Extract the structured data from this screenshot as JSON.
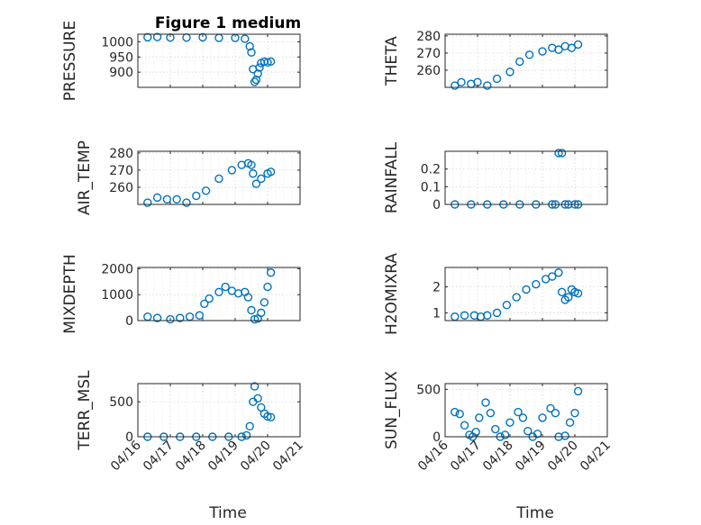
{
  "figure_title": "Figure 1 medium",
  "x_axis_label": "Time",
  "x_tick_labels": [
    "04/16",
    "04/17",
    "04/18",
    "04/19",
    "04/20",
    "04/21"
  ],
  "marker_color": "#0072bd",
  "chart_data": [
    {
      "type": "scatter",
      "ylabel": "PRESSURE",
      "title": "Figure 1 medium",
      "xlabel": "",
      "xlim": [
        "04/16",
        "04/21"
      ],
      "ylim": [
        850,
        1025
      ],
      "yticks": [
        900,
        950,
        1000
      ],
      "ytick_labels": [
        "900",
        "950",
        "1000"
      ],
      "x_days": [
        0.3,
        0.6,
        1.0,
        1.5,
        2.0,
        2.5,
        3.0,
        3.3,
        3.45,
        3.5,
        3.55,
        3.6,
        3.65,
        3.7,
        3.75,
        3.8,
        3.9,
        4.0,
        4.1
      ],
      "y": [
        1015,
        1016,
        1014,
        1014,
        1015,
        1013,
        1013,
        1010,
        985,
        965,
        910,
        868,
        875,
        895,
        915,
        930,
        935,
        932,
        935
      ]
    },
    {
      "type": "scatter",
      "ylabel": "THETA",
      "xlabel": "",
      "xlim": [
        "04/16",
        "04/21"
      ],
      "ylim": [
        250,
        281
      ],
      "yticks": [
        260,
        270,
        280
      ],
      "ytick_labels": [
        "260",
        "270",
        "280"
      ],
      "x_days": [
        0.3,
        0.5,
        0.8,
        1.0,
        1.3,
        1.6,
        2.0,
        2.3,
        2.6,
        3.0,
        3.3,
        3.5,
        3.7,
        3.9,
        4.1
      ],
      "y": [
        251,
        253,
        252,
        253,
        251,
        255,
        259,
        265,
        269,
        271,
        273,
        272,
        274,
        273,
        275
      ]
    },
    {
      "type": "scatter",
      "ylabel": "AIR_TEMP",
      "xlabel": "",
      "xlim": [
        "04/16",
        "04/21"
      ],
      "ylim": [
        250,
        281
      ],
      "yticks": [
        260,
        270,
        280
      ],
      "ytick_labels": [
        "260",
        "270",
        "280"
      ],
      "x_days": [
        0.3,
        0.6,
        0.9,
        1.2,
        1.5,
        1.8,
        2.1,
        2.5,
        2.9,
        3.2,
        3.4,
        3.5,
        3.55,
        3.65,
        3.8,
        4.0,
        4.1
      ],
      "y": [
        251,
        254,
        253,
        253,
        251,
        255,
        258,
        265,
        270,
        273,
        274,
        273,
        268,
        262,
        265,
        268,
        269
      ]
    },
    {
      "type": "scatter",
      "ylabel": "RAINFALL",
      "xlabel": "",
      "xlim": [
        "04/16",
        "04/21"
      ],
      "ylim": [
        0,
        0.3
      ],
      "yticks": [
        0,
        0.1,
        0.2
      ],
      "ytick_labels": [
        "0",
        "0.1",
        "0.2"
      ],
      "x_days": [
        0.3,
        0.8,
        1.3,
        1.8,
        2.3,
        2.8,
        3.3,
        3.4,
        3.5,
        3.6,
        3.7,
        3.8,
        4.0,
        4.1
      ],
      "y": [
        0,
        0,
        0,
        0,
        0,
        0,
        0,
        0,
        0.29,
        0.29,
        0,
        0,
        0,
        0
      ]
    },
    {
      "type": "scatter",
      "ylabel": "MIXDEPTH",
      "xlabel": "",
      "xlim": [
        "04/16",
        "04/21"
      ],
      "ylim": [
        0,
        2050
      ],
      "yticks": [
        0,
        1000,
        2000
      ],
      "ytick_labels": [
        "0",
        "1000",
        "2000"
      ],
      "x_days": [
        0.3,
        0.6,
        1.0,
        1.3,
        1.6,
        1.9,
        2.05,
        2.2,
        2.5,
        2.7,
        2.9,
        3.1,
        3.3,
        3.4,
        3.5,
        3.6,
        3.7,
        3.8,
        3.9,
        4.0,
        4.1
      ],
      "y": [
        150,
        100,
        50,
        100,
        150,
        200,
        650,
        850,
        1100,
        1300,
        1150,
        1050,
        1100,
        900,
        400,
        50,
        80,
        300,
        700,
        1300,
        1850
      ]
    },
    {
      "type": "scatter",
      "ylabel": "H2OMIXRA",
      "xlabel": "",
      "xlim": [
        "04/16",
        "04/21"
      ],
      "ylim": [
        0.7,
        2.75
      ],
      "yticks": [
        1,
        2
      ],
      "ytick_labels": [
        "1",
        "2"
      ],
      "x_days": [
        0.3,
        0.6,
        0.9,
        1.1,
        1.3,
        1.6,
        1.9,
        2.2,
        2.5,
        2.8,
        3.1,
        3.3,
        3.5,
        3.6,
        3.7,
        3.8,
        3.9,
        4.0,
        4.1
      ],
      "y": [
        0.85,
        0.9,
        0.9,
        0.85,
        0.9,
        1.0,
        1.3,
        1.6,
        1.9,
        2.1,
        2.3,
        2.4,
        2.55,
        1.8,
        1.5,
        1.6,
        1.9,
        1.8,
        1.75
      ]
    },
    {
      "type": "scatter",
      "ylabel": "TERR_MSL",
      "xlabel": "Time",
      "xlim": [
        "04/16",
        "04/21"
      ],
      "ylim": [
        0,
        760
      ],
      "yticks": [
        0,
        500
      ],
      "ytick_labels": [
        "0",
        "500"
      ],
      "x_days": [
        0.3,
        0.8,
        1.3,
        1.8,
        2.3,
        2.8,
        3.2,
        3.35,
        3.45,
        3.55,
        3.6,
        3.7,
        3.8,
        3.9,
        4.0,
        4.1
      ],
      "y": [
        0,
        0,
        0,
        0,
        0,
        0,
        0,
        20,
        150,
        500,
        720,
        550,
        420,
        330,
        290,
        280
      ]
    },
    {
      "type": "scatter",
      "ylabel": "SUN_FLUX",
      "xlabel": "Time",
      "xlim": [
        "04/16",
        "04/21"
      ],
      "ylim": [
        0,
        560
      ],
      "yticks": [
        0,
        500
      ],
      "ytick_labels": [
        "0",
        "500"
      ],
      "x_days": [
        0.3,
        0.45,
        0.6,
        0.75,
        0.85,
        0.95,
        1.05,
        1.25,
        1.4,
        1.55,
        1.7,
        1.85,
        2.0,
        2.25,
        2.4,
        2.55,
        2.7,
        2.85,
        3.0,
        3.25,
        3.4,
        3.5,
        3.7,
        3.85,
        4.0,
        4.1
      ],
      "y": [
        260,
        240,
        120,
        20,
        0,
        50,
        200,
        360,
        250,
        80,
        0,
        20,
        150,
        260,
        200,
        60,
        0,
        30,
        200,
        300,
        250,
        0,
        10,
        150,
        250,
        480
      ]
    }
  ]
}
